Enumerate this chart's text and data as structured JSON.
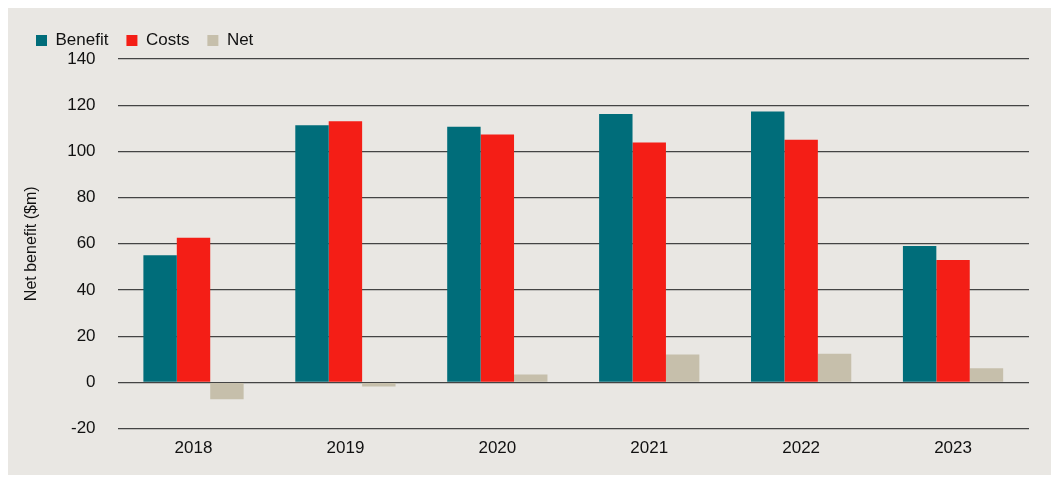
{
  "chart_data": {
    "type": "bar",
    "ylabel": "Net benefit ($m)",
    "categories": [
      "2018",
      "2019",
      "2020",
      "2021",
      "2022",
      "2023"
    ],
    "series": [
      {
        "name": "Benefit",
        "color": "#006d7a",
        "values": [
          55,
          111.3,
          110.7,
          116.2,
          117.3,
          59.1
        ]
      },
      {
        "name": "Costs",
        "color": "#f41e16",
        "values": [
          62.6,
          113.1,
          107.3,
          103.8,
          105,
          53
        ]
      },
      {
        "name": "Net",
        "color": "#c6bfab",
        "values": [
          -7.3,
          -1.8,
          3.4,
          12.1,
          12.4,
          6.1
        ]
      }
    ],
    "ylim": [
      -20,
      140
    ],
    "yticks": [
      -20,
      0,
      20,
      40,
      60,
      80,
      100,
      120,
      140
    ],
    "grid": "y",
    "legend": "top left"
  }
}
